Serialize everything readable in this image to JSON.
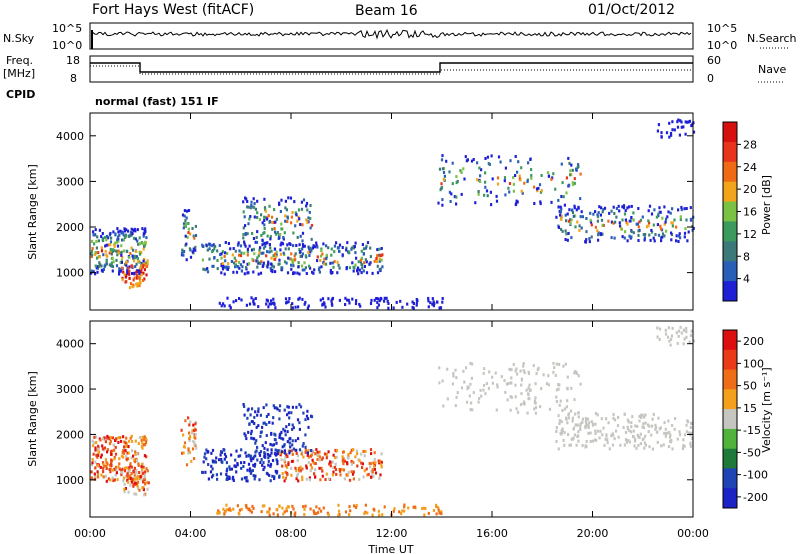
{
  "header": {
    "station": "Fort Hays West (fitACF)",
    "beam": "Beam 16",
    "date": "01/Oct/2012"
  },
  "summary": {
    "nsky_label": "N.Sky",
    "nsky_ticks": [
      "10^5",
      "10^0"
    ],
    "nsearch_label": "N.Search",
    "nsearch_ticks": [
      "10^5",
      "10^0"
    ],
    "freq_label_1": "Freq.",
    "freq_label_2": "[MHz]",
    "freq_ticks": [
      "18",
      "8"
    ],
    "nave_label": "Nave",
    "nave_ticks": [
      "60",
      "0"
    ],
    "cpid_label": "CPID",
    "cpid_text": "normal (fast) 151 IF"
  },
  "colors": {
    "power_scale": [
      "#1f1fd6",
      "#2a5fb8",
      "#3b7a78",
      "#3c9a5c",
      "#7ac144",
      "#f2a51a",
      "#f06a13",
      "#e8341d",
      "#d60f0f"
    ],
    "velocity_scale": [
      "#1d22c6",
      "#1f44b5",
      "#1e7a3a",
      "#52b33c",
      "#c6c6c0",
      "#f3a11c",
      "#ef6d16",
      "#ea3a18",
      "#dd0e10"
    ]
  },
  "chart_data": [
    {
      "type": "heatmap",
      "panel": "power",
      "ylabel": "Slant Range [km]",
      "xlabel": "",
      "ylim": [
        180,
        4500
      ],
      "xlim": [
        0,
        24
      ],
      "yticks": [
        "1000",
        "2000",
        "3000",
        "4000"
      ],
      "yticks_values": [
        1000,
        2000,
        3000,
        4000
      ],
      "colorbar_label": "Power [dB]",
      "colorbar_ticks": [
        "4",
        "8",
        "12",
        "16",
        "20",
        "24",
        "28"
      ],
      "colorbar_range": [
        0,
        32
      ]
    },
    {
      "type": "heatmap",
      "panel": "velocity",
      "ylabel": "Slant Range [km]",
      "xlabel": "Time UT",
      "ylim": [
        180,
        4500
      ],
      "xlim": [
        0,
        24
      ],
      "yticks": [
        "1000",
        "2000",
        "3000",
        "4000"
      ],
      "yticks_values": [
        1000,
        2000,
        3000,
        4000
      ],
      "xticks": [
        "00:00",
        "04:00",
        "08:00",
        "12:00",
        "16:00",
        "20:00",
        "00:00"
      ],
      "xticks_values": [
        0,
        4,
        8,
        12,
        16,
        20,
        24
      ],
      "colorbar_label": "Velocity [m s⁻¹]",
      "colorbar_ticks": [
        "200",
        "100",
        "50",
        "15",
        "-15",
        "-50",
        "-100",
        "-200"
      ]
    }
  ]
}
